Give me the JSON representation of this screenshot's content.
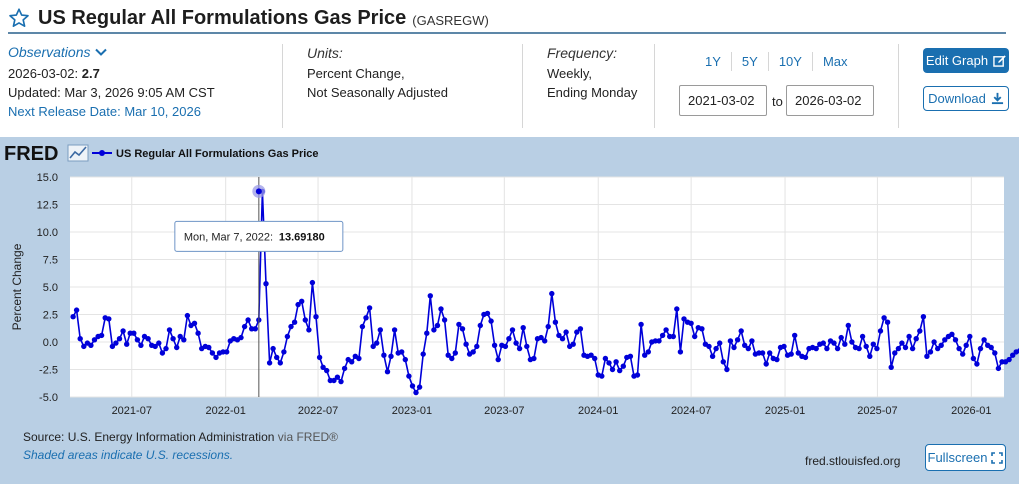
{
  "header": {
    "title": "US Regular All Formulations Gas Price",
    "series_id": "(GASREGW)"
  },
  "meta": {
    "observations_label": "Observations",
    "obs_date": "2026-03-02:",
    "obs_value": "2.7",
    "updated": "Updated: Mar 3, 2026 9:05 AM CST",
    "next_release": "Next Release Date: Mar 10, 2026",
    "units_label": "Units:",
    "units_line1": "Percent Change,",
    "units_line2": "Not Seasonally Adjusted",
    "frequency_label": "Frequency:",
    "frequency_line1": "Weekly,",
    "frequency_line2": "Ending Monday"
  },
  "range": {
    "buttons": [
      "1Y",
      "5Y",
      "10Y",
      "Max"
    ],
    "start_date": "2021-03-02",
    "to_label": "to",
    "end_date": "2026-03-02"
  },
  "actions": {
    "edit_graph": "Edit Graph",
    "download": "Download"
  },
  "fred_logo": "FRED",
  "footer": {
    "source": "Source: U.S. Energy Information Administration",
    "via": "via FRED®",
    "shaded": "Shaded areas indicate U.S. recessions.",
    "url": "fred.stlouisfed.org",
    "fullscreen": "Fullscreen"
  },
  "colors": {
    "series": "#0000d9",
    "panel": "#b9cfe4",
    "accent": "#1a6fb0"
  },
  "chart_data": {
    "type": "line",
    "title": "",
    "xlabel": "",
    "ylabel": "Percent Change",
    "ylim": [
      -5.0,
      15.0
    ],
    "yticks": [
      "15.0",
      "12.5",
      "10.0",
      "7.5",
      "5.0",
      "2.5",
      "0.0",
      "-2.5",
      "-5.0"
    ],
    "xticks": [
      "2021-07",
      "2022-01",
      "2022-07",
      "2023-01",
      "2023-07",
      "2024-01",
      "2024-07",
      "2025-01",
      "2025-07",
      "2026-01"
    ],
    "grid": true,
    "legend": "top-left",
    "series": [
      {
        "name": "US Regular All Formulations Gas Price",
        "x_start": "2021-03-08",
        "x_step_days": 7,
        "values": [
          2.3,
          2.9,
          0.3,
          -0.4,
          -0.1,
          -0.3,
          0.2,
          0.5,
          0.6,
          2.2,
          2.1,
          -0.4,
          -0.1,
          0.3,
          1.0,
          -0.2,
          0.8,
          0.8,
          0.2,
          -0.3,
          0.5,
          0.3,
          -0.3,
          -0.4,
          -0.1,
          -1.0,
          -0.6,
          1.1,
          0.3,
          -0.5,
          0.5,
          0.2,
          2.4,
          1.5,
          1.7,
          0.8,
          -0.6,
          -0.4,
          -0.5,
          -1.0,
          -1.4,
          -1.0,
          -0.9,
          -0.9,
          0.1,
          0.3,
          0.2,
          0.4,
          1.4,
          2.0,
          1.2,
          1.2,
          2.0,
          13.69,
          5.3,
          -1.9,
          -0.6,
          -1.4,
          -1.9,
          -0.9,
          0.5,
          1.4,
          1.8,
          3.4,
          3.7,
          2.0,
          1.1,
          5.4,
          2.3,
          -1.4,
          -2.3,
          -2.6,
          -3.5,
          -3.5,
          -3.2,
          -3.6,
          -2.4,
          -1.6,
          -1.8,
          -1.3,
          -1.5,
          1.4,
          2.2,
          3.1,
          -0.4,
          -0.1,
          1.1,
          -1.2,
          -2.7,
          -1.3,
          1.1,
          -1.0,
          -0.9,
          -1.6,
          -3.1,
          -4.0,
          -4.6,
          -4.1,
          -1.1,
          0.8,
          4.2,
          1.1,
          1.5,
          3.0,
          2.0,
          -1.2,
          -1.5,
          -1.0,
          1.6,
          1.2,
          -0.2,
          -1.1,
          -0.9,
          -0.4,
          1.5,
          2.5,
          2.6,
          1.9,
          -0.3,
          -1.6,
          -0.3,
          -0.4,
          0.3,
          1.1,
          -0.1,
          -0.6,
          1.3,
          -0.4,
          -1.6,
          -1.5,
          0.3,
          0.4,
          0.1,
          1.4,
          4.4,
          1.8,
          0.6,
          0.3,
          0.9,
          -0.4,
          -0.2,
          0.9,
          1.2,
          -1.2,
          -1.3,
          -1.2,
          -1.5,
          -3.0,
          -3.1,
          -1.5,
          -1.9,
          -2.5,
          -1.8,
          -2.6,
          -2.2,
          -1.4,
          -1.3,
          -3.1,
          -3.0,
          1.6,
          -1.2,
          -0.9,
          0.0,
          0.1,
          0.1,
          0.6,
          1.1,
          0.5,
          0.5,
          3.0,
          -0.9,
          2.1,
          1.8,
          1.7,
          0.5,
          1.3,
          1.2,
          -0.2,
          -0.4,
          -1.3,
          -0.6,
          -0.1,
          -1.8,
          -2.5,
          0.1,
          -0.5,
          0.2,
          1.0,
          -0.3,
          -0.6,
          0.1,
          -1.1,
          -1.0,
          -1.0,
          -2.0,
          -1.0,
          -1.5,
          -1.6,
          -0.5,
          -0.4,
          -1.2,
          -1.1,
          0.6,
          -1.0,
          -1.3,
          -1.4,
          -0.6,
          -0.5,
          -0.6,
          -0.2,
          -0.1,
          -0.6,
          0.1,
          -0.1,
          -0.6,
          0.4,
          -0.2,
          1.5,
          0.0,
          -0.5,
          -0.6,
          0.5,
          -0.4,
          -1.3,
          -0.2,
          -0.6,
          1.0,
          2.2,
          1.8,
          -2.3,
          -1.0,
          -0.6,
          -0.1,
          -0.5,
          0.5,
          -0.6,
          0.3,
          1.0,
          2.3,
          -1.3,
          -0.9,
          0.0,
          -0.6,
          -0.3,
          0.2,
          0.5,
          0.7,
          0.2,
          -0.6,
          -1.1,
          -0.3,
          0.5,
          -1.5,
          -2.0,
          -0.6,
          0.2,
          -0.3,
          -0.5,
          -1.0,
          -2.4,
          -1.8,
          -1.8,
          -1.6,
          -1.2,
          -0.9,
          -0.8,
          0.9,
          1.5,
          0.4,
          1.0,
          0.3,
          2.7
        ]
      }
    ],
    "tooltip": {
      "label": "Mon, Mar 7, 2022:",
      "value": "13.69180",
      "x": "2022-03-07",
      "y": 13.6918
    }
  }
}
